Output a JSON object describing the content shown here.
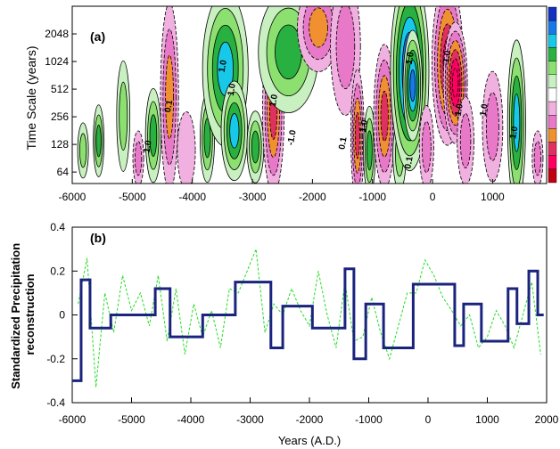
{
  "chart_data": [
    {
      "type": "heatmap",
      "panel_label": "(a)",
      "ylabel": "Time Scale (years)",
      "xlim": [
        -6000,
        1900
      ],
      "xticks": [
        -6000,
        -5000,
        -4000,
        -3000,
        -2000,
        -1000,
        0,
        1000
      ],
      "xtick_labels": [
        "-6000",
        "-5000",
        "-4000",
        "-3000",
        "-2000",
        "-1000",
        "0",
        "1000"
      ],
      "yscale": "log2",
      "ylim": [
        48,
        4096
      ],
      "yticks": [
        64,
        128,
        256,
        512,
        1024,
        2048
      ],
      "ytick_labels": [
        "64",
        "128",
        "256",
        "512",
        "1024",
        "2048"
      ],
      "colorbar_colors": [
        "#1030c0",
        "#1878e8",
        "#18c8e8",
        "#28b040",
        "#8ce070",
        "#c8f0c0",
        "#ffffff",
        "#f0b0e0",
        "#e878c8",
        "#f09030",
        "#e03060",
        "#ff0060",
        "#c00010"
      ],
      "contour_labels": [
        "1.0",
        "1.0",
        "0.1",
        "1.0",
        "0.1",
        "1.0",
        "-1.0",
        "1.0",
        "0.1",
        "1.0",
        "-1.0",
        "1.0",
        "-1.0",
        "1.0"
      ],
      "blobs": [
        {
          "center": [
            -5820,
            110
          ],
          "width": 90,
          "span_log2": 1.0,
          "value": 0.4
        },
        {
          "center": [
            -5560,
            140
          ],
          "width": 90,
          "span_log2": 1.3,
          "value": 0.55
        },
        {
          "center": [
            -5150,
            260
          ],
          "width": 110,
          "span_log2": 2.0,
          "value": 0.35
        },
        {
          "center": [
            -4900,
            90
          ],
          "width": 90,
          "span_log2": 1.0,
          "value": -0.35
        },
        {
          "center": [
            -4650,
            160
          ],
          "width": 130,
          "span_log2": 1.7,
          "value": 0.7
        },
        {
          "center": [
            -4380,
            420
          ],
          "width": 150,
          "span_log2": 3.4,
          "value": -0.75
        },
        {
          "center": [
            -4100,
            110
          ],
          "width": 150,
          "span_log2": 1.4,
          "value": -0.3
        },
        {
          "center": [
            -3750,
            150
          ],
          "width": 120,
          "span_log2": 1.6,
          "value": 0.6
        },
        {
          "center": [
            -3450,
            850
          ],
          "width": 380,
          "span_log2": 2.8,
          "value": 1.0
        },
        {
          "center": [
            -3300,
            180
          ],
          "width": 220,
          "span_log2": 1.8,
          "value": 0.85
        },
        {
          "center": [
            -2950,
            120
          ],
          "width": 140,
          "span_log2": 1.3,
          "value": 0.6
        },
        {
          "center": [
            -2650,
            300
          ],
          "width": 180,
          "span_log2": 3.0,
          "value": -0.9
        },
        {
          "center": [
            -2400,
            1300
          ],
          "width": 500,
          "span_log2": 2.2,
          "value": 0.55
        },
        {
          "center": [
            -1900,
            2400
          ],
          "width": 350,
          "span_log2": 1.6,
          "value": -0.6
        },
        {
          "center": [
            -1450,
            1500
          ],
          "width": 250,
          "span_log2": 2.5,
          "value": -0.5
        },
        {
          "center": [
            -1250,
            160
          ],
          "width": 110,
          "span_log2": 2.4,
          "value": -0.8
        },
        {
          "center": [
            -1050,
            110
          ],
          "width": 100,
          "span_log2": 1.6,
          "value": 0.6
        },
        {
          "center": [
            -800,
            260
          ],
          "width": 180,
          "span_log2": 2.6,
          "value": -0.85
        },
        {
          "center": [
            -550,
            100
          ],
          "width": 110,
          "span_log2": 1.3,
          "value": 0.5
        },
        {
          "center": [
            -380,
            800
          ],
          "width": 320,
          "span_log2": 3.6,
          "value": 1.4
        },
        {
          "center": [
            -330,
            560
          ],
          "width": 160,
          "span_log2": 2.0,
          "value": 1.1
        },
        {
          "center": [
            -100,
            120
          ],
          "width": 120,
          "span_log2": 1.5,
          "value": -0.5
        },
        {
          "center": [
            250,
            1000
          ],
          "width": 260,
          "span_log2": 3.0,
          "value": -1.15
        },
        {
          "center": [
            380,
            600
          ],
          "width": 200,
          "span_log2": 2.2,
          "value": -1.3
        },
        {
          "center": [
            550,
            140
          ],
          "width": 140,
          "span_log2": 1.6,
          "value": -0.5
        },
        {
          "center": [
            1000,
            200
          ],
          "width": 170,
          "span_log2": 2.0,
          "value": -0.45
        },
        {
          "center": [
            1400,
            220
          ],
          "width": 150,
          "span_log2": 3.0,
          "value": 0.8
        },
        {
          "center": [
            1750,
            90
          ],
          "width": 90,
          "span_log2": 1.0,
          "value": -0.4
        }
      ]
    },
    {
      "type": "line",
      "panel_label": "(b)",
      "ylabel": "Standardized Precipitation reconstruction",
      "xlabel": "Years (A.D.)",
      "xlim": [
        -6000,
        2000
      ],
      "ylim": [
        -0.4,
        0.4
      ],
      "xticks": [
        -6000,
        -5000,
        -4000,
        -3000,
        -2000,
        -1000,
        0,
        1000,
        2000
      ],
      "xtick_labels": [
        "-6000",
        "-5000",
        "-4000",
        "-3000",
        "-2000",
        "-1000",
        "0",
        "1000",
        "2000"
      ],
      "yticks": [
        -0.4,
        -0.2,
        0,
        0.2,
        0.4
      ],
      "ytick_labels": [
        "-0.4",
        "-0.2",
        "0",
        "0.2",
        "0.4"
      ],
      "series": [
        {
          "color": "#1a237e",
          "style": "step",
          "x": [
            -6000,
            -5850,
            -5700,
            -5350,
            -4600,
            -4350,
            -3800,
            -3250,
            -2650,
            -2450,
            -1950,
            -1400,
            -1250,
            -1050,
            -750,
            -250,
            450,
            600,
            900,
            1350,
            1500,
            1700,
            1850,
            1950
          ],
          "values": [
            -0.3,
            0.16,
            -0.06,
            0.0,
            0.12,
            -0.1,
            0.0,
            0.15,
            -0.15,
            0.04,
            -0.06,
            0.21,
            -0.2,
            0.05,
            -0.15,
            0.14,
            -0.14,
            0.05,
            -0.12,
            0.12,
            -0.04,
            0.2,
            0.0,
            0.0
          ]
        },
        {
          "color": "#22dd22",
          "style": "dashed",
          "x": [
            -5900,
            -5750,
            -5600,
            -5450,
            -5300,
            -5150,
            -5000,
            -4850,
            -4700,
            -4550,
            -4400,
            -4250,
            -4100,
            -3950,
            -3800,
            -3650,
            -3500,
            -3350,
            -3200,
            -3050,
            -2900,
            -2750,
            -2600,
            -2450,
            -2300,
            -2150,
            -2000,
            -1850,
            -1700,
            -1550,
            -1400,
            -1250,
            -1100,
            -950,
            -800,
            -650,
            -500,
            -350,
            -200,
            -50,
            100,
            250,
            400,
            550,
            700,
            850,
            1000,
            1150,
            1300,
            1450,
            1600,
            1750,
            1900
          ],
          "values": [
            0.05,
            0.26,
            -0.33,
            0.1,
            -0.08,
            0.18,
            0.02,
            0.1,
            -0.05,
            0.18,
            -0.12,
            0.12,
            -0.18,
            0.05,
            -0.1,
            0.02,
            -0.15,
            0.12,
            0.1,
            0.2,
            0.3,
            -0.08,
            0.05,
            0.0,
            0.12,
            0.02,
            -0.05,
            0.2,
            0.0,
            -0.15,
            0.15,
            -0.12,
            -0.1,
            0.08,
            -0.08,
            -0.2,
            -0.05,
            0.1,
            0.1,
            0.25,
            0.18,
            0.08,
            0.02,
            -0.05,
            0.0,
            -0.15,
            -0.1,
            0.02,
            -0.05,
            -0.15,
            0.0,
            0.15,
            -0.18
          ]
        }
      ]
    }
  ]
}
